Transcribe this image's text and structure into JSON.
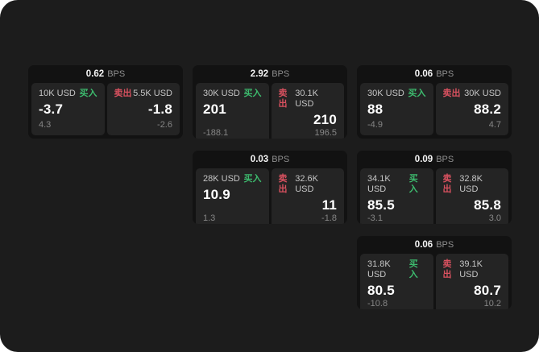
{
  "theme": {
    "page_bg": "#1c1c1c",
    "card_bg": "#121212",
    "panel_bg": "#242424",
    "buy_color": "#3dbb6e",
    "sell_color": "#d8515f"
  },
  "labels": {
    "bps_unit": "BPS",
    "buy": "买入",
    "sell": "卖出"
  },
  "cards": [
    {
      "bps": "0.62",
      "buy": {
        "notional": "10K USD",
        "price": "-3.7",
        "delta": "4.3"
      },
      "sell": {
        "notional": "5.5K USD",
        "price": "-1.8",
        "delta": "-2.6"
      }
    },
    {
      "bps": "2.92",
      "buy": {
        "notional": "30K USD",
        "price": "201",
        "delta": "-188.1"
      },
      "sell": {
        "notional": "30.1K USD",
        "price": "210",
        "delta": "196.5"
      }
    },
    {
      "bps": "0.06",
      "buy": {
        "notional": "30K USD",
        "price": "88",
        "delta": "-4.9"
      },
      "sell": {
        "notional": "30K USD",
        "price": "88.2",
        "delta": "4.7"
      }
    },
    {
      "bps": "0.03",
      "buy": {
        "notional": "28K USD",
        "price": "10.9",
        "delta": "1.3"
      },
      "sell": {
        "notional": "32.6K USD",
        "price": "11",
        "delta": "-1.8"
      }
    },
    {
      "bps": "0.09",
      "buy": {
        "notional": "34.1K USD",
        "price": "85.5",
        "delta": "-3.1"
      },
      "sell": {
        "notional": "32.8K USD",
        "price": "85.8",
        "delta": "3.0"
      }
    },
    {
      "bps": "0.06",
      "buy": {
        "notional": "31.8K USD",
        "price": "80.5",
        "delta": "-10.8"
      },
      "sell": {
        "notional": "39.1K USD",
        "price": "80.7",
        "delta": "10.2"
      }
    }
  ]
}
